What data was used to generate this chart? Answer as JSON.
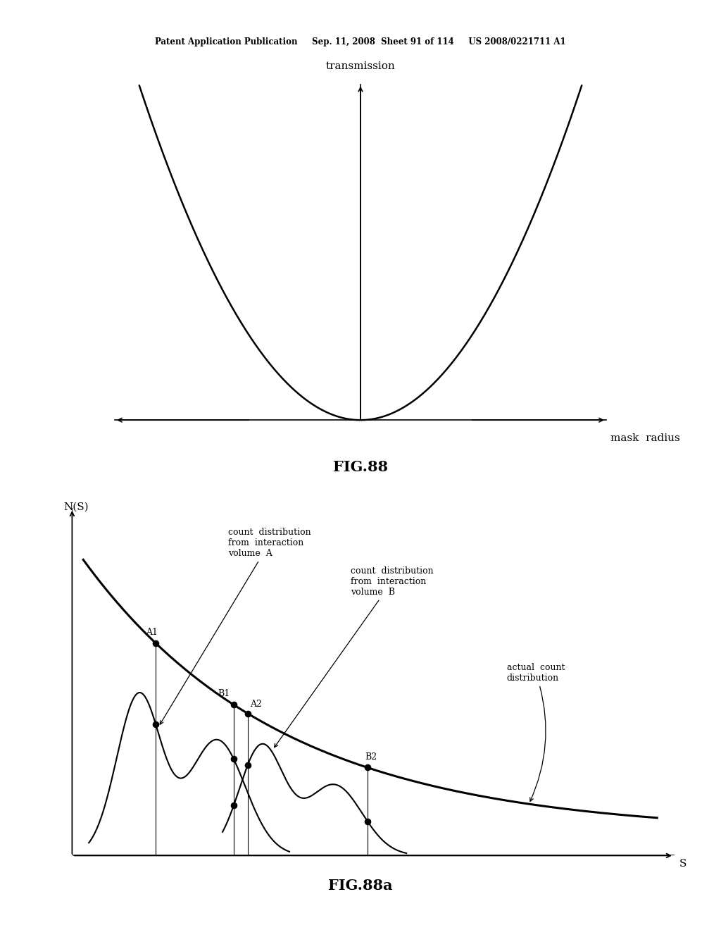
{
  "bg_color": "#ffffff",
  "header_text": "Patent Application Publication     Sep. 11, 2008  Sheet 91 of 114     US 2008/0221711 A1",
  "fig88_title": "FIG.88",
  "fig88a_title": "FIG.88a",
  "fig88_xlabel": "mask  radius",
  "fig88_ylabel": "transmission",
  "fig88a_xlabel": "S",
  "fig88a_ylabel": "N(S)"
}
